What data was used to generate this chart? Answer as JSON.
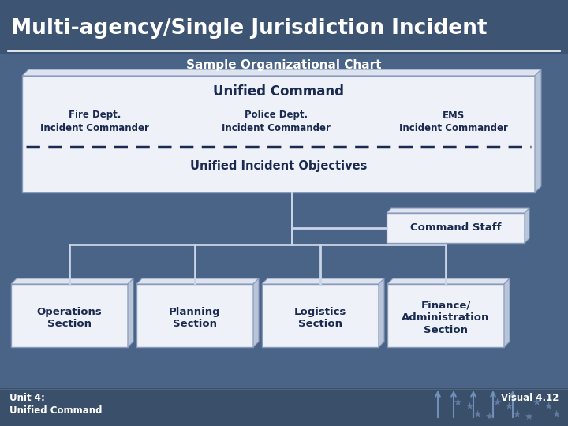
{
  "title": "Multi-agency/Single Jurisdiction Incident",
  "subtitle": "Sample Organizational Chart",
  "bg_color": "#4a6488",
  "title_bg_color": "#3d5472",
  "title_color": "#ffffff",
  "subtitle_color": "#ffffff",
  "box_fill": "#f0f2f8",
  "box_edge": "#8899bb",
  "box_3d_top": "#ffffff",
  "box_3d_side": "#c0c8dc",
  "box_text_color": "#1a2a50",
  "unified_command_title": "Unified Command",
  "commanders": [
    "Fire Dept.\nIncident Commander",
    "Police Dept.\nIncident Commander",
    "EMS\nIncident Commander"
  ],
  "objectives_text": "Unified Incident Objectives",
  "command_staff_text": "Command Staff",
  "sections": [
    "Operations\nSection",
    "Planning\nSection",
    "Logistics\nSection",
    "Finance/\nAdministration\nSection"
  ],
  "footer_left1": "Unit 4:",
  "footer_left2": "Unified Command",
  "footer_right": "Visual 4.12",
  "line_color": "#c8d4e8",
  "dashed_color": "#1a2a50",
  "footer_bg": "#3a4f6a"
}
